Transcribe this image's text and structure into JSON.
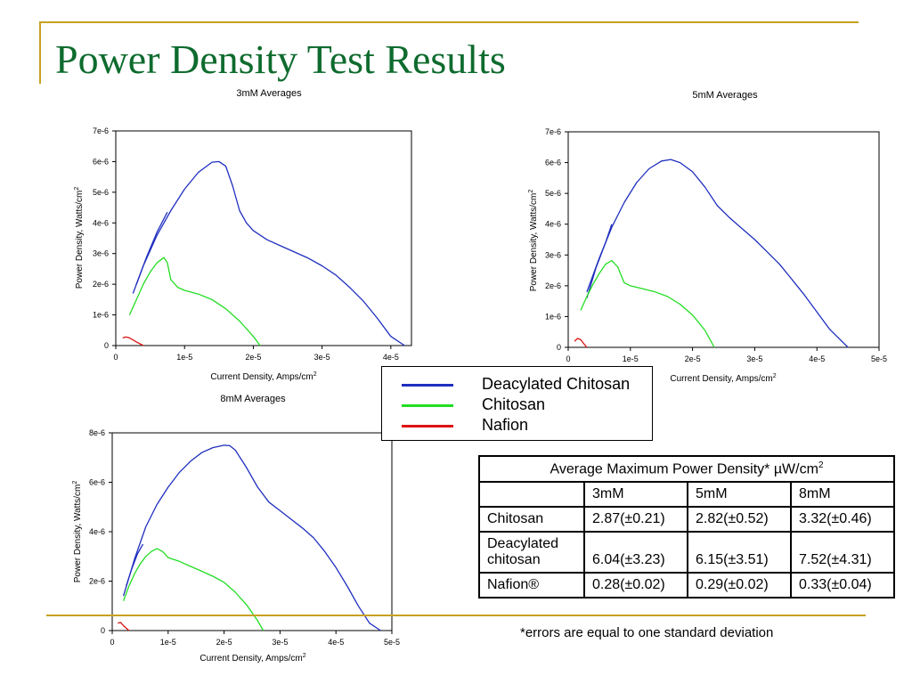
{
  "slide": {
    "title": "Power Density Test Results",
    "footnote": "*errors are equal to one standard deviation"
  },
  "colors": {
    "deacylated": "#1f2fbf",
    "chitosan": "#22dd22",
    "nafion": "#dd1111",
    "accent": "#c8a020",
    "title": "#0e6b2e"
  },
  "legend": [
    {
      "label": "Deacylated Chitosan",
      "color": "#1f2fbf"
    },
    {
      "label": "Chitosan",
      "color": "#22dd22"
    },
    {
      "label": "Nafion",
      "color": "#dd1111"
    }
  ],
  "chart_data": [
    {
      "type": "line",
      "title": "3mM Averages",
      "xlabel": "Current Density, Amps/cm",
      "ylabel": "Power Density, Watts/cm",
      "label_superscript": "2",
      "xlim": [
        0,
        4.3e-05
      ],
      "ylim": [
        0,
        7e-06
      ],
      "xticks": [
        0,
        1e-05,
        2e-05,
        3e-05,
        4e-05
      ],
      "xtick_labels": [
        "0",
        "1e-5",
        "2e-5",
        "3e-5",
        "4e-5"
      ],
      "yticks": [
        0,
        1e-06,
        2e-06,
        3e-06,
        4e-06,
        5e-06,
        6e-06,
        7e-06
      ],
      "ytick_labels": [
        "0",
        "1e-6",
        "2e-6",
        "3e-6",
        "4e-6",
        "5e-6",
        "6e-6",
        "7e-6"
      ],
      "series": [
        {
          "name": "Deacylated Chitosan",
          "color": "#1f2fbf",
          "points": [
            [
              2.5e-06,
              1.7e-06
            ],
            [
              4e-06,
              2.6e-06
            ],
            [
              6e-06,
              3.6e-06
            ],
            [
              8e-06,
              4.4e-06
            ],
            [
              1e-05,
              5.1e-06
            ],
            [
              1.2e-05,
              5.65e-06
            ],
            [
              1.4e-05,
              5.98e-06
            ],
            [
              1.5e-05,
              6e-06
            ],
            [
              1.6e-05,
              5.85e-06
            ],
            [
              1.7e-05,
              5.2e-06
            ],
            [
              1.8e-05,
              4.4e-06
            ],
            [
              1.9e-05,
              4e-06
            ],
            [
              2e-05,
              3.75e-06
            ],
            [
              2.2e-05,
              3.45e-06
            ],
            [
              2.4e-05,
              3.25e-06
            ],
            [
              2.6e-05,
              3.05e-06
            ],
            [
              2.8e-05,
              2.85e-06
            ],
            [
              3e-05,
              2.6e-06
            ],
            [
              3.2e-05,
              2.3e-06
            ],
            [
              3.4e-05,
              1.9e-06
            ],
            [
              3.6e-05,
              1.45e-06
            ],
            [
              3.8e-05,
              9e-07
            ],
            [
              4e-05,
              3e-07
            ],
            [
              4.2e-05,
              0
            ]
          ]
        },
        {
          "name": "Deacylated Chitosan",
          "color": "#1f2fbf",
          "points": [
            [
              3e-06,
              2e-06
            ],
            [
              4.5e-06,
              2.9e-06
            ],
            [
              6e-06,
              3.7e-06
            ],
            [
              7.5e-06,
              4.35e-06
            ]
          ]
        },
        {
          "name": "Chitosan",
          "color": "#22dd22",
          "points": [
            [
              2e-06,
              1e-06
            ],
            [
              3e-06,
              1.5e-06
            ],
            [
              4e-06,
              2e-06
            ],
            [
              5e-06,
              2.4e-06
            ],
            [
              6e-06,
              2.7e-06
            ],
            [
              7e-06,
              2.87e-06
            ],
            [
              7.5e-06,
              2.7e-06
            ],
            [
              8e-06,
              2.15e-06
            ],
            [
              9e-06,
              1.9e-06
            ],
            [
              1e-05,
              1.8e-06
            ],
            [
              1.2e-05,
              1.68e-06
            ],
            [
              1.4e-05,
              1.5e-06
            ],
            [
              1.6e-05,
              1.2e-06
            ],
            [
              1.8e-05,
              8e-07
            ],
            [
              2e-05,
              3e-07
            ],
            [
              2.1e-05,
              0
            ]
          ]
        },
        {
          "name": "Nafion",
          "color": "#dd1111",
          "points": [
            [
              1e-06,
              2.5e-07
            ],
            [
              1.5e-06,
              2.8e-07
            ],
            [
              2e-06,
              2.5e-07
            ],
            [
              3e-06,
              1.2e-07
            ],
            [
              4e-06,
              0
            ]
          ]
        }
      ]
    },
    {
      "type": "line",
      "title": "5mM Averages",
      "xlabel": "Current Density, Amps/cm",
      "ylabel": "Power Density, Watts/cm",
      "label_superscript": "2",
      "xlim": [
        0,
        5e-05
      ],
      "ylim": [
        0,
        7e-06
      ],
      "xticks": [
        0,
        1e-05,
        2e-05,
        3e-05,
        4e-05,
        5e-05
      ],
      "xtick_labels": [
        "0",
        "1e-5",
        "2e-5",
        "3e-5",
        "4e-5",
        "5e-5"
      ],
      "yticks": [
        0,
        1e-06,
        2e-06,
        3e-06,
        4e-06,
        5e-06,
        6e-06,
        7e-06
      ],
      "ytick_labels": [
        "0",
        "1e-6",
        "2e-6",
        "3e-6",
        "4e-6",
        "5e-6",
        "6e-6",
        "7e-6"
      ],
      "series": [
        {
          "name": "Deacylated Chitosan",
          "color": "#1f2fbf",
          "points": [
            [
              3e-06,
              1.8e-06
            ],
            [
              5e-06,
              2.9e-06
            ],
            [
              7e-06,
              3.9e-06
            ],
            [
              9e-06,
              4.7e-06
            ],
            [
              1.1e-05,
              5.35e-06
            ],
            [
              1.3e-05,
              5.8e-06
            ],
            [
              1.5e-05,
              6.05e-06
            ],
            [
              1.65e-05,
              6.1e-06
            ],
            [
              1.8e-05,
              6e-06
            ],
            [
              2e-05,
              5.7e-06
            ],
            [
              2.2e-05,
              5.2e-06
            ],
            [
              2.4e-05,
              4.6e-06
            ],
            [
              2.6e-05,
              4.2e-06
            ],
            [
              2.8e-05,
              3.85e-06
            ],
            [
              3e-05,
              3.5e-06
            ],
            [
              3.2e-05,
              3.1e-06
            ],
            [
              3.4e-05,
              2.7e-06
            ],
            [
              3.6e-05,
              2.2e-06
            ],
            [
              3.8e-05,
              1.7e-06
            ],
            [
              4e-05,
              1.15e-06
            ],
            [
              4.2e-05,
              6e-07
            ],
            [
              4.5e-05,
              0
            ]
          ]
        },
        {
          "name": "Deacylated Chitosan",
          "color": "#1f2fbf",
          "points": [
            [
              3e-06,
              1.6e-06
            ],
            [
              4.5e-06,
              2.6e-06
            ],
            [
              6e-06,
              3.4e-06
            ],
            [
              7e-06,
              4e-06
            ]
          ]
        },
        {
          "name": "Chitosan",
          "color": "#22dd22",
          "points": [
            [
              2e-06,
              1.2e-06
            ],
            [
              3e-06,
              1.65e-06
            ],
            [
              4e-06,
              2.05e-06
            ],
            [
              5e-06,
              2.4e-06
            ],
            [
              6e-06,
              2.7e-06
            ],
            [
              7e-06,
              2.82e-06
            ],
            [
              8e-06,
              2.6e-06
            ],
            [
              9e-06,
              2.1e-06
            ],
            [
              1e-05,
              2e-06
            ],
            [
              1.2e-05,
              1.9e-06
            ],
            [
              1.4e-05,
              1.8e-06
            ],
            [
              1.6e-05,
              1.65e-06
            ],
            [
              1.8e-05,
              1.4e-06
            ],
            [
              2e-05,
              1.05e-06
            ],
            [
              2.2e-05,
              5.5e-07
            ],
            [
              2.35e-05,
              0
            ]
          ]
        },
        {
          "name": "Nafion",
          "color": "#dd1111",
          "points": [
            [
              1e-06,
              2e-07
            ],
            [
              1.5e-06,
              2.9e-07
            ],
            [
              2e-06,
              2.5e-07
            ],
            [
              2.5e-06,
              1.2e-07
            ],
            [
              3e-06,
              0
            ]
          ]
        }
      ]
    },
    {
      "type": "line",
      "title": "8mM Averages",
      "xlabel": "Current Density, Amps/cm",
      "ylabel": "Power Density, Watts/cm",
      "label_superscript": "2",
      "xlim": [
        0,
        5e-05
      ],
      "ylim": [
        0,
        8e-06
      ],
      "xticks": [
        0,
        1e-05,
        2e-05,
        3e-05,
        4e-05,
        5e-05
      ],
      "xtick_labels": [
        "0",
        "1e-5",
        "2e-5",
        "3e-5",
        "4e-5",
        "5e-5"
      ],
      "yticks": [
        0,
        2e-06,
        4e-06,
        6e-06,
        8e-06
      ],
      "ytick_labels": [
        "0",
        "2e-6",
        "4e-6",
        "6e-6",
        "8e-6"
      ],
      "series": [
        {
          "name": "Deacylated Chitosan",
          "color": "#1f2fbf",
          "points": [
            [
              2e-06,
              1.4e-06
            ],
            [
              4e-06,
              2.9e-06
            ],
            [
              6e-06,
              4.2e-06
            ],
            [
              8e-06,
              5.1e-06
            ],
            [
              1e-05,
              5.8e-06
            ],
            [
              1.2e-05,
              6.4e-06
            ],
            [
              1.4e-05,
              6.85e-06
            ],
            [
              1.6e-05,
              7.2e-06
            ],
            [
              1.8e-05,
              7.4e-06
            ],
            [
              2e-05,
              7.5e-06
            ],
            [
              2.1e-05,
              7.48e-06
            ],
            [
              2.2e-05,
              7.3e-06
            ],
            [
              2.4e-05,
              6.6e-06
            ],
            [
              2.6e-05,
              5.8e-06
            ],
            [
              2.8e-05,
              5.2e-06
            ],
            [
              3e-05,
              4.85e-06
            ],
            [
              3.2e-05,
              4.5e-06
            ],
            [
              3.4e-05,
              4.15e-06
            ],
            [
              3.6e-05,
              3.75e-06
            ],
            [
              3.8e-05,
              3.2e-06
            ],
            [
              4e-05,
              2.55e-06
            ],
            [
              4.2e-05,
              1.8e-06
            ],
            [
              4.4e-05,
              1e-06
            ],
            [
              4.6e-05,
              3e-07
            ],
            [
              4.8e-05,
              0
            ]
          ]
        },
        {
          "name": "Deacylated Chitosan",
          "color": "#1f2fbf",
          "points": [
            [
              2.5e-06,
              1.8e-06
            ],
            [
              3.5e-06,
              2.5e-06
            ],
            [
              4.5e-06,
              3.1e-06
            ],
            [
              5.5e-06,
              3.5e-06
            ]
          ]
        },
        {
          "name": "Chitosan",
          "color": "#22dd22",
          "points": [
            [
              2e-06,
              1.2e-06
            ],
            [
              3e-06,
              1.8e-06
            ],
            [
              4e-06,
              2.3e-06
            ],
            [
              5e-06,
              2.7e-06
            ],
            [
              6e-06,
              3e-06
            ],
            [
              7e-06,
              3.2e-06
            ],
            [
              8e-06,
              3.32e-06
            ],
            [
              9e-06,
              3.2e-06
            ],
            [
              1e-05,
              2.95e-06
            ],
            [
              1.2e-05,
              2.8e-06
            ],
            [
              1.4e-05,
              2.6e-06
            ],
            [
              1.6e-05,
              2.4e-06
            ],
            [
              1.8e-05,
              2.2e-06
            ],
            [
              2e-05,
              1.95e-06
            ],
            [
              2.2e-05,
              1.55e-06
            ],
            [
              2.4e-05,
              1.05e-06
            ],
            [
              2.6e-05,
              4e-07
            ],
            [
              2.7e-05,
              0
            ]
          ]
        },
        {
          "name": "Nafion",
          "color": "#dd1111",
          "points": [
            [
              1e-06,
              3e-07
            ],
            [
              1.5e-06,
              3.3e-07
            ],
            [
              2e-06,
              2e-07
            ],
            [
              3e-06,
              0
            ]
          ]
        }
      ]
    },
    {
      "type": "table",
      "title": "Average Maximum Power Density* µW/cm",
      "title_superscript": "2",
      "columns": [
        "",
        "3mM",
        "5mM",
        "8mM"
      ],
      "rows": [
        [
          "Chitosan",
          "2.87(±0.21)",
          "2.82(±0.52)",
          "3.32(±0.46)"
        ],
        [
          "Deacylated chitosan",
          "6.04(±3.23)",
          "6.15(±3.51)",
          "7.52(±4.31)"
        ],
        [
          "Nafion®",
          "0.28(±0.02)",
          "0.29(±0.02)",
          "0.33(±0.04)"
        ]
      ]
    }
  ]
}
